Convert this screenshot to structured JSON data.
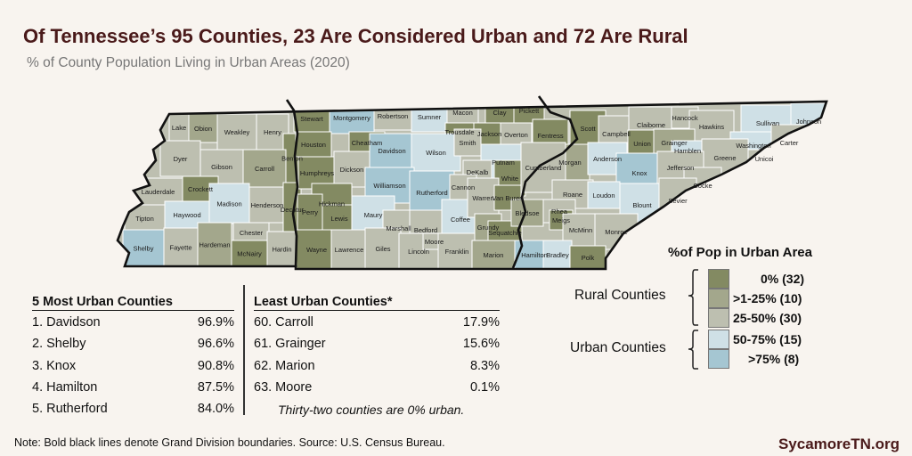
{
  "header": {
    "title": "Of Tennessee’s 95 Counties, 23 Are Considered Urban and 72 Are Rural",
    "subtitle": "% of County Population Living in Urban Areas (2020)"
  },
  "colors": {
    "rural_0": "#838a62",
    "rural_1_25": "#a3a78c",
    "rural_25_50": "#bdbfb0",
    "urban_50_75": "#cfe0e6",
    "urban_75_plus": "#a5c6d2",
    "title": "#4a1a1a",
    "division_lines": "#111111"
  },
  "legend": {
    "title": "%of Pop in Urban Area",
    "rural_group": "Rural Counties",
    "urban_group": "Urban Counties",
    "items": [
      {
        "label": "0% (32)",
        "color": "#838a62"
      },
      {
        "label": ">1-25% (10)",
        "color": "#a3a78c"
      },
      {
        "label": "25-50% (30)",
        "color": "#bdbfb0"
      },
      {
        "label": "50-75% (15)",
        "color": "#cfe0e6"
      },
      {
        "label": ">75% (8)",
        "color": "#a5c6d2"
      }
    ]
  },
  "counties": {
    "west": [
      "Lake",
      "Obion",
      "Weakley",
      "Henry",
      "Benton",
      "Dyer",
      "Gibson",
      "Carroll",
      "Crockett",
      "Lauderdale",
      "Haywood",
      "Madison",
      "Henderson",
      "Decatur",
      "Tipton",
      "Chester",
      "Shelby",
      "Fayette",
      "Hardeman",
      "McNairy",
      "Hardin"
    ],
    "middle": [
      "Stewart",
      "Montgomery",
      "Robertson",
      "Sumner",
      "Macon",
      "Clay",
      "Pickett",
      "Houston",
      "Cheatham",
      "Trousdale",
      "Jackson",
      "Overton",
      "Fentress",
      "Humphreys",
      "Dickson",
      "Davidson",
      "Wilson",
      "Smith",
      "Putnam",
      "DeKalb",
      "White",
      "Williamson",
      "Rutherford",
      "Cannon",
      "Hickman",
      "Perry",
      "Lewis",
      "Maury",
      "Marshall",
      "Bedford",
      "Coffee",
      "Warren",
      "Van Buren",
      "Wayne",
      "Lawrence",
      "Giles",
      "Lincoln",
      "Moore",
      "Franklin",
      "Grundy",
      "Sequatchie",
      "Marion"
    ],
    "east": [
      "Scott",
      "Campbell",
      "Claiborne",
      "Hancock",
      "Hawkins",
      "Sullivan",
      "Johnson",
      "Union",
      "Grainger",
      "Hamblen",
      "Washington",
      "Carter",
      "Greene",
      "Unicoi",
      "Morgan",
      "Anderson",
      "Knox",
      "Jefferson",
      "Cocke",
      "Cumberland",
      "Roane",
      "Loudon",
      "Blount",
      "Sevier",
      "Bledsoe",
      "Rhea",
      "Meigs",
      "McMinn",
      "Monroe",
      "Hamilton",
      "Bradley",
      "Polk"
    ]
  },
  "most_urban": {
    "title": "5 Most Urban Counties",
    "rows": [
      {
        "name": "1. Davidson",
        "value": "96.9%"
      },
      {
        "name": "2. Shelby",
        "value": "96.6%"
      },
      {
        "name": "3. Knox",
        "value": "90.8%"
      },
      {
        "name": "4. Hamilton",
        "value": "87.5%"
      },
      {
        "name": "5. Rutherford",
        "value": "84.0%"
      }
    ]
  },
  "least_urban": {
    "title": "Least Urban Counties*",
    "rows": [
      {
        "name": "60. Carroll",
        "value": "17.9%"
      },
      {
        "name": "61. Grainger",
        "value": "15.6%"
      },
      {
        "name": "62. Marion",
        "value": "8.3%"
      },
      {
        "name": "63. Moore",
        "value": "0.1%"
      }
    ],
    "footnote": "Thirty-two counties are 0% urban."
  },
  "footer": {
    "note": "Note: Bold black lines denote Grand Division boundaries. Source: U.S. Census Bureau.",
    "brand": "SycamoreTN.org"
  }
}
